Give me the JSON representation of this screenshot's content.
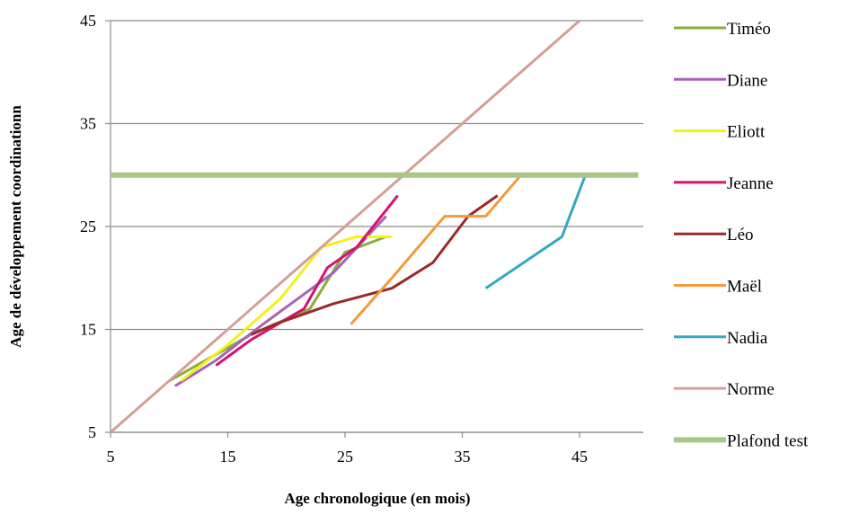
{
  "chart_data": {
    "type": "line",
    "xlabel": "Age chronologique (en mois)",
    "ylabel": "Age de développement coordinationn",
    "xlim": [
      5,
      50
    ],
    "ylim": [
      5,
      45
    ],
    "xticks": [
      5,
      15,
      25,
      35,
      45
    ],
    "yticks": [
      5,
      15,
      25,
      35,
      45
    ],
    "grid": "horizontal",
    "legend": "right",
    "series": [
      {
        "name": "Timéo",
        "color": "#8aad3e",
        "width": 3,
        "points": [
          [
            10,
            10
          ],
          [
            17,
            14.5
          ],
          [
            22,
            17
          ],
          [
            25,
            22.5
          ],
          [
            28.5,
            24
          ]
        ]
      },
      {
        "name": "Diane",
        "color": "#a763b8",
        "width": 3,
        "points": [
          [
            10.5,
            9.5
          ],
          [
            14,
            12
          ],
          [
            18,
            15.5
          ],
          [
            21,
            18
          ],
          [
            24,
            20.5
          ],
          [
            28.5,
            26
          ]
        ]
      },
      {
        "name": "Eliott",
        "color": "#f2f21a",
        "width": 3,
        "points": [
          [
            11,
            10
          ],
          [
            15,
            13.5
          ],
          [
            19.5,
            18
          ],
          [
            23,
            23
          ],
          [
            26,
            24
          ],
          [
            29,
            24
          ]
        ]
      },
      {
        "name": "Jeanne",
        "color": "#d4146e",
        "width": 3,
        "points": [
          [
            14,
            11.5
          ],
          [
            17,
            14
          ],
          [
            21.5,
            17
          ],
          [
            23.5,
            21
          ],
          [
            26,
            23
          ],
          [
            29.5,
            28
          ]
        ]
      },
      {
        "name": "Léo",
        "color": "#9b2a2a",
        "width": 3,
        "points": [
          [
            17,
            14.5
          ],
          [
            19,
            15.5
          ],
          [
            24,
            17.5
          ],
          [
            29,
            19
          ],
          [
            32.5,
            21.5
          ],
          [
            35.5,
            26
          ],
          [
            38,
            28
          ]
        ]
      },
      {
        "name": "Maël",
        "color": "#f39a3c",
        "width": 3,
        "points": [
          [
            25.5,
            15.5
          ],
          [
            29,
            20
          ],
          [
            33.5,
            26
          ],
          [
            37,
            26
          ],
          [
            40,
            30
          ]
        ]
      },
      {
        "name": "Nadia",
        "color": "#35a7c3",
        "width": 3,
        "points": [
          [
            37,
            19
          ],
          [
            43.5,
            24
          ],
          [
            45.5,
            30
          ]
        ]
      },
      {
        "name": "Norme",
        "color": "#d59f98",
        "width": 3,
        "points": [
          [
            5,
            5
          ],
          [
            45,
            45
          ]
        ]
      },
      {
        "name": "Plafond test",
        "color": "#a8c887",
        "width": 6,
        "points": [
          [
            5,
            30
          ],
          [
            50,
            30
          ]
        ]
      }
    ]
  }
}
